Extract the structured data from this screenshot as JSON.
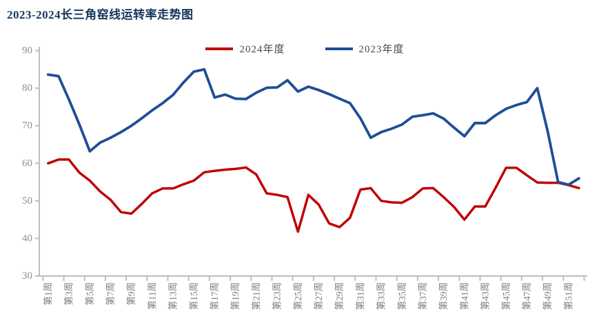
{
  "page": {
    "title": "2023-2024长三角窑线运转率走势图"
  },
  "legend": {
    "items": [
      {
        "label": "2024年度",
        "color": "#C00000"
      },
      {
        "label": "2023年度",
        "color": "#1F4E97"
      }
    ]
  },
  "axis": {
    "line_color": "#BDBDBD",
    "y_label_color": "#8F8F8F",
    "x_label_color": "#7D7D7D"
  },
  "chart_data": {
    "type": "line",
    "title": "2023-2024长三角窑线运转率走势图",
    "xlabel": "",
    "ylabel": "",
    "ylim": [
      30,
      90
    ],
    "y_ticks": [
      90,
      80,
      70,
      60,
      50,
      40,
      30
    ],
    "grid": false,
    "legend_position": "top-center",
    "weeks": 52,
    "x_tick_labels": [
      "第1周",
      "第3周",
      "第5周",
      "第7周",
      "第9周",
      "第11周",
      "第13周",
      "第15周",
      "第17周",
      "第19周",
      "第21周",
      "第23周",
      "第25周",
      "第27周",
      "第29周",
      "第31周",
      "第33周",
      "第35周",
      "第37周",
      "第39周",
      "第41周",
      "第43周",
      "第45周",
      "第47周",
      "第49周",
      "第51周"
    ],
    "series": [
      {
        "name": "2024年度",
        "color": "#C00000",
        "values": [
          60,
          61,
          61,
          57.5,
          55.4,
          52.5,
          50.3,
          47,
          46.6,
          49.2,
          52,
          53.3,
          53.3,
          54.4,
          55.4,
          57.6,
          58,
          58.3,
          58.5,
          58.9,
          57,
          52,
          51.6,
          51,
          41.8,
          51.6,
          49,
          44,
          43,
          45.5,
          53,
          53.4,
          50,
          49.6,
          49.5,
          51,
          53.3,
          53.4,
          51,
          48.4,
          45,
          48.5,
          48.5,
          53.5,
          58.8,
          58.8,
          56.8,
          54.9,
          54.8,
          54.8,
          54.2,
          53.4
        ]
      },
      {
        "name": "2023年度",
        "color": "#1F4E97",
        "values": [
          83.6,
          83.2,
          77,
          70.3,
          63.2,
          65.5,
          66.8,
          68.3,
          70,
          72,
          74.1,
          76,
          78.2,
          81.5,
          84.4,
          85,
          77.5,
          78.3,
          77.2,
          77.1,
          78.8,
          80.1,
          80.2,
          82.1,
          79.1,
          80.4,
          79.5,
          78.4,
          77.2,
          76,
          72,
          66.8,
          68.3,
          69.2,
          70.3,
          72.4,
          72.8,
          73.3,
          71.9,
          69.5,
          67.2,
          70.7,
          70.7,
          72.8,
          74.5,
          75.5,
          76.3,
          80,
          68.5,
          55,
          54.3,
          56
        ]
      }
    ]
  }
}
